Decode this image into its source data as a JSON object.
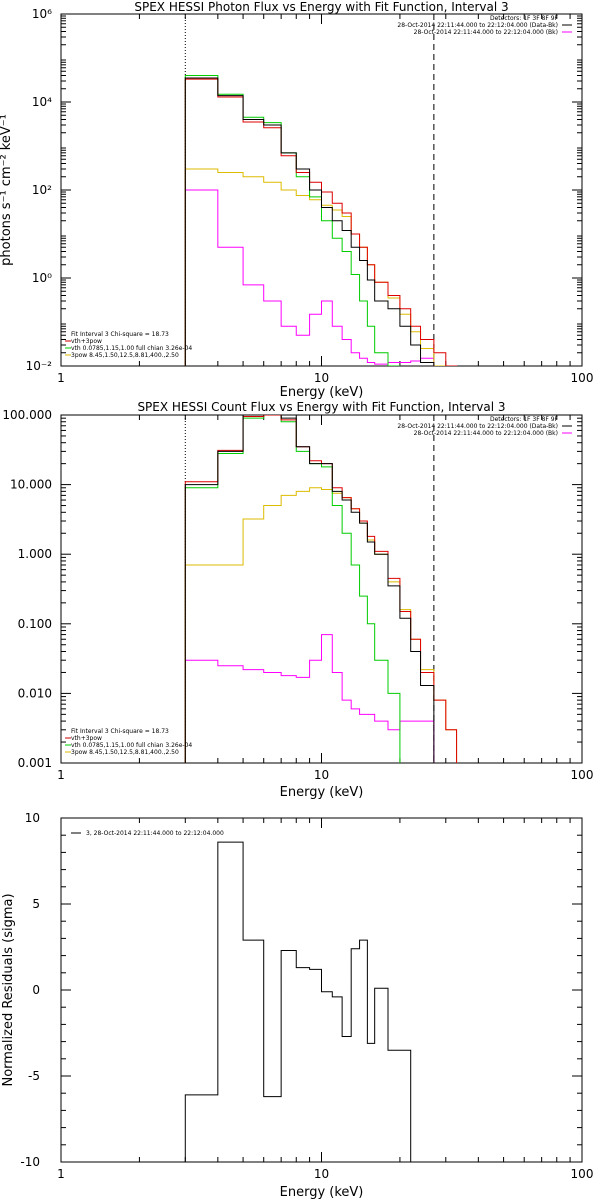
{
  "chart_data": [
    {
      "type": "line",
      "title": "SPEX HESSI Photon Flux vs Energy with Fit Function, Interval 3",
      "xlabel": "Energy (keV)",
      "ylabel": "photons s⁻¹ cm⁻² keV⁻¹",
      "xscale": "log",
      "yscale": "log",
      "xlim": [
        1,
        100
      ],
      "ylim": [
        0.01,
        1000000
      ],
      "x_ticks": [
        {
          "v": 1,
          "label": "1"
        },
        {
          "v": 10,
          "label": "10"
        },
        {
          "v": 100,
          "label": "100"
        }
      ],
      "y_ticks": [
        {
          "v": 0.01,
          "label": "10⁻²"
        },
        {
          "v": 1,
          "label": "10⁰"
        },
        {
          "v": 100,
          "label": "10²"
        },
        {
          "v": 10000,
          "label": "10⁴"
        },
        {
          "v": 1000000,
          "label": "10⁶"
        }
      ],
      "vlines": [
        {
          "x": 3.0,
          "style": "dotted"
        },
        {
          "x": 27.0,
          "style": "dashed"
        }
      ],
      "info_lines": [
        {
          "text": "Detectors: 1F 3F 8F 9F",
          "color": "#000000"
        },
        {
          "text": "28-Oct-2014 22:11:44.000 to 22:12:04.000 (Data-Bk)",
          "color": "#000000"
        },
        {
          "text": "28-Oct-2014 22:11:44.000 to 22:12:04.000 (Bk)",
          "color": "#ff00ff"
        }
      ],
      "fit_legend": [
        {
          "text": "Fit Interval 3   Chi-square = 18.73",
          "color": "#000000"
        },
        {
          "text": "vth+3pow",
          "color": "#cc0000"
        },
        {
          "text": "vth 0.0785,1.15,1.00  full chian 3.26e-04",
          "color": "#00cc00"
        },
        {
          "text": "3pow 8.45,1.50,12.5,8.81,400.,2.50",
          "color": "#ddbb00"
        }
      ],
      "edges": [
        3,
        4,
        5,
        6,
        7,
        8,
        9,
        10,
        11,
        12,
        13,
        14,
        15,
        16,
        18,
        20,
        22,
        24,
        27,
        30,
        33,
        36
      ],
      "series": [
        {
          "color": "#000000",
          "values": [
            35000,
            14000,
            4000,
            3000,
            700,
            300,
            100,
            40,
            20,
            12,
            5,
            2.5,
            0.9,
            0.3,
            0.2,
            0.08,
            0.03,
            0.012,
            null,
            null,
            null
          ]
        },
        {
          "color": "#dd0000",
          "values": [
            33000,
            13000,
            3500,
            2600,
            600,
            250,
            150,
            90,
            50,
            30,
            10,
            5,
            2,
            0.8,
            0.4,
            0.2,
            0.08,
            0.04,
            0.02,
            0.01,
            null
          ]
        },
        {
          "color": "#00cc00",
          "values": [
            40000,
            15000,
            4500,
            3400,
            700,
            200,
            70,
            20,
            8,
            4,
            1.2,
            0.3,
            0.08,
            0.02,
            0.01,
            null,
            null,
            null,
            null,
            null,
            null
          ]
        },
        {
          "color": "#ddbb00",
          "values": [
            300,
            250,
            200,
            150,
            100,
            75,
            60,
            45,
            35,
            25,
            10,
            5,
            2,
            0.8,
            0.35,
            0.15,
            0.06,
            0.025,
            0.01,
            null,
            null
          ]
        },
        {
          "color": "#ff00ff",
          "values": [
            100,
            5,
            0.7,
            0.3,
            0.08,
            0.05,
            0.15,
            0.3,
            0.08,
            0.04,
            0.02,
            0.015,
            0.012,
            0.011,
            0.012,
            0.012,
            0.013,
            0.015,
            null,
            null,
            null
          ]
        }
      ]
    },
    {
      "type": "line",
      "title": "SPEX HESSI Count Flux vs Energy with Fit Function, Interval 3",
      "xlabel": "Energy (keV)",
      "ylabel": "",
      "xscale": "log",
      "yscale": "log",
      "xlim": [
        1,
        100
      ],
      "ylim": [
        0.001,
        100
      ],
      "x_ticks": [
        {
          "v": 1,
          "label": "1"
        },
        {
          "v": 10,
          "label": "10"
        },
        {
          "v": 100,
          "label": "100"
        }
      ],
      "y_ticks": [
        {
          "v": 0.001,
          "label": "0.001"
        },
        {
          "v": 0.01,
          "label": "0.010"
        },
        {
          "v": 0.1,
          "label": "0.100"
        },
        {
          "v": 1,
          "label": "1.000"
        },
        {
          "v": 10,
          "label": "10.000"
        },
        {
          "v": 100,
          "label": "100.000"
        }
      ],
      "vlines": [
        {
          "x": 3.0,
          "style": "dotted"
        },
        {
          "x": 27.0,
          "style": "dashed"
        }
      ],
      "info_lines": [
        {
          "text": "Detectors: 1F 3F 8F 9F",
          "color": "#000000"
        },
        {
          "text": "28-Oct-2014 22:11:44.000 to 22:12:04.000 (Data-Bk)",
          "color": "#000000"
        },
        {
          "text": "28-Oct-2014 22:11:44.000 to 22:12:04.000 (Bk)",
          "color": "#ff00ff"
        }
      ],
      "fit_legend": [
        {
          "text": "Fit Interval 3   Chi-square = 18.73",
          "color": "#000000"
        },
        {
          "text": "vth+3pow",
          "color": "#cc0000"
        },
        {
          "text": "vth 0.0785,1.15,1.00  full chian 3.26e-04",
          "color": "#00cc00"
        },
        {
          "text": "3pow 8.45,1.50,12.5,8.81,400.,2.50",
          "color": "#ddbb00"
        }
      ],
      "edges": [
        3,
        4,
        5,
        6,
        7,
        8,
        9,
        10,
        11,
        12,
        13,
        14,
        15,
        16,
        18,
        20,
        22,
        24,
        27,
        30,
        33,
        36
      ],
      "series": [
        {
          "color": "#000000",
          "values": [
            10,
            30,
            100,
            110,
            90,
            35,
            20,
            20,
            8,
            6,
            4,
            2.8,
            1.5,
            1.0,
            0.35,
            0.12,
            0.04,
            0.013,
            null,
            null,
            null
          ]
        },
        {
          "color": "#dd0000",
          "values": [
            11,
            31,
            95,
            100,
            85,
            35,
            22,
            20,
            9,
            6.5,
            4.5,
            3.0,
            1.8,
            1.1,
            0.45,
            0.15,
            0.06,
            0.02,
            0.008,
            0.003,
            null
          ]
        },
        {
          "color": "#00cc00",
          "values": [
            9,
            28,
            90,
            100,
            80,
            30,
            20,
            18,
            5,
            2,
            0.7,
            0.25,
            0.1,
            0.03,
            0.01,
            null,
            null,
            null,
            null,
            null,
            null
          ]
        },
        {
          "color": "#ddbb00",
          "values": [
            0.7,
            0.7,
            3.2,
            5,
            7,
            8,
            9,
            8.5,
            7.5,
            6.5,
            4.5,
            2.8,
            1.6,
            1.0,
            0.4,
            0.16,
            0.06,
            0.022,
            0.008,
            0.003,
            null
          ]
        },
        {
          "color": "#ff00ff",
          "values": [
            0.03,
            0.025,
            0.022,
            0.02,
            0.018,
            0.017,
            0.03,
            0.07,
            0.02,
            0.008,
            0.006,
            0.005,
            0.005,
            0.004,
            0.003,
            0.004,
            0.004,
            0.004,
            null,
            null,
            null
          ]
        }
      ]
    },
    {
      "type": "line",
      "title": "",
      "xlabel": "Energy (keV)",
      "ylabel": "Normalized Residuals (sigma)",
      "xscale": "log",
      "yscale": "linear",
      "xlim": [
        1,
        100
      ],
      "ylim": [
        -10,
        10
      ],
      "x_ticks": [
        {
          "v": 1,
          "label": "1"
        },
        {
          "v": 10,
          "label": "10"
        },
        {
          "v": 100,
          "label": "100"
        }
      ],
      "y_ticks": [
        {
          "v": -10,
          "label": "-10"
        },
        {
          "v": -5,
          "label": "-5"
        },
        {
          "v": 0,
          "label": "0"
        },
        {
          "v": 5,
          "label": "5"
        },
        {
          "v": 10,
          "label": "10"
        }
      ],
      "vlines": [],
      "info_lines": [],
      "fit_legend": [],
      "resid_legend": "3, 28-Oct-2014 22:11:44.000 to 22:12:04.000",
      "edges": [
        3,
        4,
        5,
        6,
        7,
        8,
        9,
        10,
        11,
        12,
        13,
        14,
        15,
        16,
        18,
        20,
        22,
        24,
        27
      ],
      "series": [
        {
          "color": "#000000",
          "values": [
            -6.1,
            8.6,
            2.9,
            -6.2,
            2.3,
            1.3,
            1.2,
            -0.1,
            -0.4,
            -2.7,
            2.4,
            2.9,
            -3.1,
            0.1,
            -3.5,
            -3.5,
            -10,
            -10
          ]
        }
      ]
    }
  ]
}
